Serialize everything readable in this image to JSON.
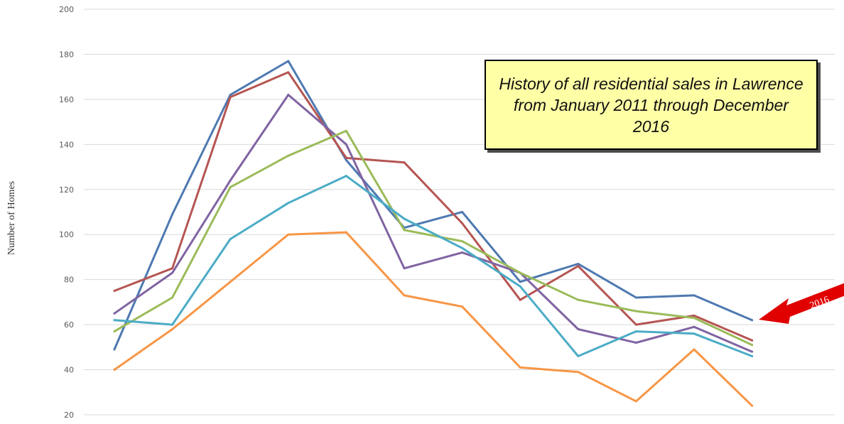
{
  "chart_data": {
    "type": "line",
    "title": "",
    "xlabel": "",
    "ylabel": "Number of Homes",
    "ylim": [
      20,
      200
    ],
    "yticks": [
      20,
      40,
      60,
      80,
      100,
      120,
      140,
      160,
      180,
      200
    ],
    "grid": true,
    "x": [
      1,
      2,
      3,
      4,
      5,
      6,
      7,
      8,
      9,
      10,
      11,
      12
    ],
    "series": [
      {
        "color": "#4e79b1",
        "values": [
          49,
          109,
          162,
          177,
          133,
          103,
          110,
          79,
          87,
          72,
          73,
          62
        ]
      },
      {
        "color": "#b55552",
        "values": [
          75,
          85,
          161,
          172,
          134,
          132,
          105,
          71,
          86,
          60,
          64,
          53
        ]
      },
      {
        "color": "#8064a2",
        "values": [
          65,
          83,
          124,
          162,
          140,
          85,
          92,
          83,
          58,
          52,
          59,
          48
        ]
      },
      {
        "color": "#9bbb59",
        "values": [
          57,
          72,
          121,
          135,
          146,
          102,
          97,
          83,
          71,
          66,
          63,
          51
        ]
      },
      {
        "color": "#4bacc6",
        "values": [
          62,
          60,
          98,
          114,
          126,
          107,
          94,
          77,
          46,
          57,
          56,
          46
        ]
      },
      {
        "color": "#f79646",
        "values": [
          40,
          58,
          79,
          100,
          101,
          73,
          68,
          41,
          39,
          26,
          49,
          24
        ]
      }
    ],
    "annotation": "History of all residential sales in Lawrence from January 2011 through December 2016",
    "arrow_label": "2016",
    "arrow_color": "#e00000"
  }
}
